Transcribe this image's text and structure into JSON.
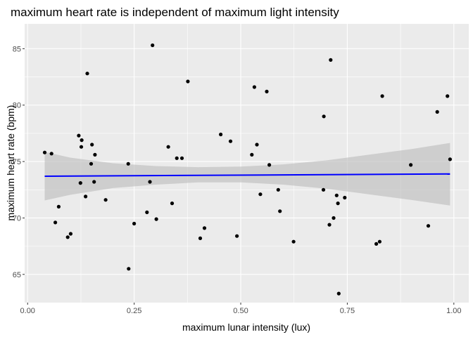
{
  "chart_data": {
    "type": "scatter",
    "title": "maximum heart rate is independent of maximum light intensity",
    "xlabel": "maximum lunar intensity (lux)",
    "ylabel": "maximum heart rate (bpm)",
    "xlim": [
      -0.007,
      1.035
    ],
    "ylim": [
      62.5,
      87.2
    ],
    "xticks": [
      0.0,
      0.25,
      0.5,
      0.75,
      1.0
    ],
    "xtick_labels": [
      "0.00",
      "0.25",
      "0.50",
      "0.75",
      "1.00"
    ],
    "yticks": [
      65,
      70,
      75,
      80,
      85
    ],
    "ytick_labels": [
      "65",
      "70",
      "75",
      "80",
      "85"
    ],
    "grid": true,
    "colors": {
      "panel_background": "#ebebeb",
      "grid": "#ffffff",
      "points": "#000000",
      "trend_line": "#0000ff",
      "confidence_band": "#bebebe"
    },
    "series": [
      {
        "points": [
          [
            0.04,
            75.8
          ],
          [
            0.056,
            75.7
          ],
          [
            0.065,
            69.6
          ],
          [
            0.073,
            71.0
          ],
          [
            0.094,
            68.3
          ],
          [
            0.101,
            68.6
          ],
          [
            0.12,
            77.3
          ],
          [
            0.124,
            73.1
          ],
          [
            0.126,
            76.3
          ],
          [
            0.127,
            76.9
          ],
          [
            0.136,
            71.9
          ],
          [
            0.14,
            82.8
          ],
          [
            0.149,
            74.8
          ],
          [
            0.151,
            76.5
          ],
          [
            0.156,
            73.2
          ],
          [
            0.158,
            75.6
          ],
          [
            0.183,
            71.6
          ],
          [
            0.236,
            74.8
          ],
          [
            0.237,
            65.5
          ],
          [
            0.25,
            69.5
          ],
          [
            0.28,
            70.5
          ],
          [
            0.287,
            73.2
          ],
          [
            0.293,
            85.3
          ],
          [
            0.302,
            69.9
          ],
          [
            0.33,
            76.3
          ],
          [
            0.339,
            71.3
          ],
          [
            0.35,
            75.3
          ],
          [
            0.362,
            75.3
          ],
          [
            0.376,
            82.1
          ],
          [
            0.405,
            68.2
          ],
          [
            0.415,
            69.1
          ],
          [
            0.453,
            77.4
          ],
          [
            0.476,
            76.8
          ],
          [
            0.491,
            68.4
          ],
          [
            0.526,
            75.6
          ],
          [
            0.532,
            81.6
          ],
          [
            0.538,
            76.5
          ],
          [
            0.546,
            72.1
          ],
          [
            0.561,
            81.2
          ],
          [
            0.567,
            74.7
          ],
          [
            0.588,
            72.5
          ],
          [
            0.592,
            70.6
          ],
          [
            0.624,
            67.9
          ],
          [
            0.694,
            72.5
          ],
          [
            0.695,
            79.0
          ],
          [
            0.708,
            69.4
          ],
          [
            0.711,
            84.0
          ],
          [
            0.718,
            70.0
          ],
          [
            0.725,
            72.0
          ],
          [
            0.728,
            71.3
          ],
          [
            0.73,
            63.3
          ],
          [
            0.744,
            71.8
          ],
          [
            0.818,
            67.7
          ],
          [
            0.826,
            67.9
          ],
          [
            0.832,
            80.8
          ],
          [
            0.899,
            74.7
          ],
          [
            0.94,
            69.3
          ],
          [
            0.961,
            79.4
          ],
          [
            0.985,
            80.8
          ],
          [
            0.991,
            75.2
          ]
        ]
      }
    ],
    "trend_line": {
      "x": [
        0.04,
        0.991
      ],
      "y": [
        73.7,
        73.9
      ]
    },
    "confidence_band": {
      "x": [
        0.04,
        0.1,
        0.2,
        0.3,
        0.4,
        0.5,
        0.6,
        0.7,
        0.8,
        0.9,
        0.991
      ],
      "upper": [
        75.85,
        75.35,
        74.85,
        74.6,
        74.5,
        74.55,
        74.75,
        75.1,
        75.6,
        76.1,
        76.65
      ],
      "lower": [
        71.55,
        72.05,
        72.65,
        72.95,
        73.15,
        73.15,
        72.95,
        72.6,
        72.1,
        71.6,
        71.1
      ]
    }
  }
}
